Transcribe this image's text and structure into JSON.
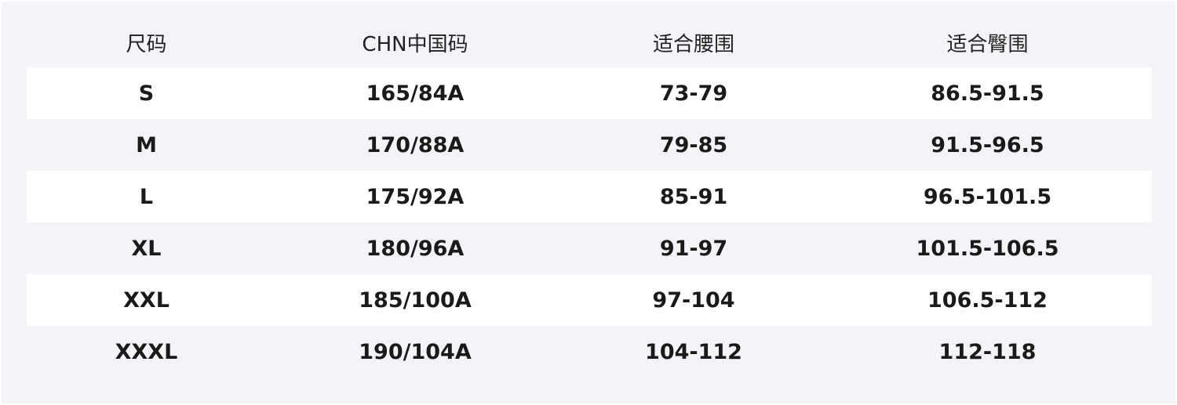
{
  "table": {
    "header": [
      "尺码",
      "CHN中国码",
      "适合腰围",
      "适合臀围"
    ],
    "rows": [
      [
        "S",
        "165/84A",
        "73-79",
        "86.5-91.5"
      ],
      [
        "M",
        "170/88A",
        "79-85",
        "91.5-96.5"
      ],
      [
        "L",
        "175/92A",
        "85-91",
        "96.5-101.5"
      ],
      [
        "XL",
        "180/96A",
        "91-97",
        "101.5-106.5"
      ],
      [
        "XXL",
        "185/100A",
        "97-104",
        "106.5-112"
      ],
      [
        "XXXL",
        "190/104A",
        "104-112",
        "112-118"
      ]
    ]
  }
}
